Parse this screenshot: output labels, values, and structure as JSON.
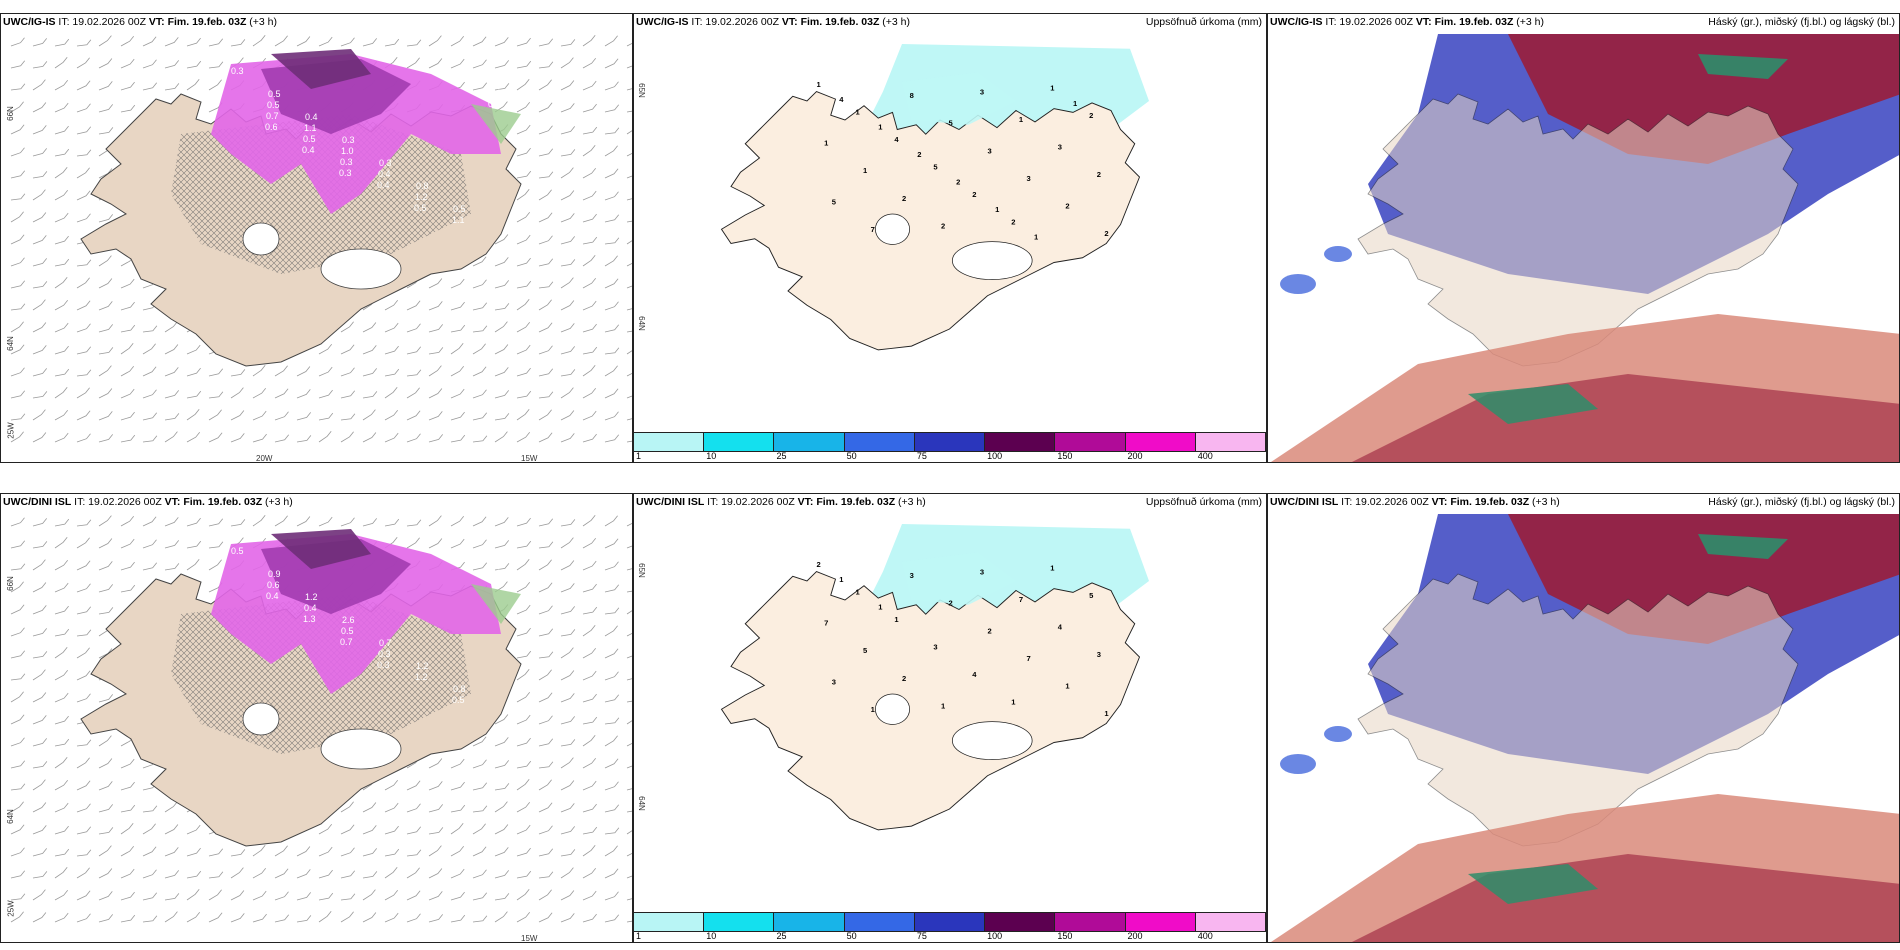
{
  "rows": [
    {
      "wind": {
        "model": "UWC/IG-IS",
        "it": "IT: 19.02.2026 00Z",
        "vt_label": "VT:",
        "vt": "Fim. 19.feb. 03Z",
        "lead": "(+3 h)"
      },
      "precip": {
        "model": "UWC/IG-IS",
        "it": "IT: 19.02.2026 00Z",
        "vt_label": "VT:",
        "vt": "Fim. 19.feb. 03Z",
        "lead": "(+3 h)",
        "right": "Uppsöfnuð úrkoma (mm)"
      },
      "cloud": {
        "model": "UWC/IG-IS",
        "it": "IT: 19.02.2026 00Z",
        "vt_label": "VT:",
        "vt": "Fim. 19.feb. 03Z",
        "lead": "(+3 h)",
        "right": "Háský (gr.), miðský (fj.bl.) og lágský (bl.)"
      }
    },
    {
      "wind": {
        "model": "UWC/DINI ISL",
        "it": "IT: 19.02.2026 00Z",
        "vt_label": "VT:",
        "vt": "Fim. 19.feb. 03Z",
        "lead": "(+3 h)"
      },
      "precip": {
        "model": "UWC/DINI ISL",
        "it": "IT: 19.02.2026 00Z",
        "vt_label": "VT:",
        "vt": "Fim. 19.feb. 03Z",
        "lead": "(+3 h)",
        "right": "Uppsöfnuð úrkoma (mm)"
      },
      "cloud": {
        "model": "UWC/DINI ISL",
        "it": "IT: 19.02.2026 00Z",
        "vt_label": "VT:",
        "vt": "Fim. 19.feb. 03Z",
        "lead": "(+3 h)",
        "right": "Háský (gr.), miðský (fj.bl.) og lágský (bl.)"
      }
    }
  ],
  "axis": {
    "lat66": "66N",
    "lat64": "64N",
    "lon25": "25W",
    "lon20": "20W",
    "lon15": "15W",
    "lat65": "65N",
    "lat64b": "64N"
  },
  "legend": {
    "labels": [
      "1",
      "10",
      "25",
      "50",
      "75",
      "100",
      "150",
      "200",
      "400"
    ],
    "colors": [
      "#b8f5f5",
      "#14e0ee",
      "#18b4e8",
      "#3468e6",
      "#2a36bc",
      "#5c0050",
      "#b00b98",
      "#f00cc8",
      "#f8b6f0"
    ]
  },
  "precip_labels_top": [
    "1",
    "1",
    "4",
    "5",
    "2",
    "2",
    "1",
    "2",
    "1",
    "1",
    "2",
    "2",
    "3",
    "1",
    "3",
    "2",
    "5",
    "7",
    "8",
    "5",
    "3",
    "3",
    "2",
    "2",
    "4",
    "1",
    "2",
    "2",
    "1",
    "1",
    "1"
  ],
  "precip_labels_bot": [
    "2",
    "1",
    "1",
    "3",
    "4",
    "1",
    "1",
    "5",
    "7",
    "5",
    "2",
    "1",
    "3",
    "7",
    "4",
    "3",
    "3",
    "1",
    "3",
    "2",
    "2",
    "7",
    "1",
    "1",
    "1",
    "1"
  ],
  "wind_labels_top": [
    "0.3",
    "0.5",
    "0.4",
    "0.3",
    "0.3",
    "0.8",
    "0.5",
    "0.8",
    "0.5",
    "1.1",
    "1.0",
    "0.4",
    "1.2",
    "1.1",
    "1.0",
    "0.7",
    "0.5",
    "0.3",
    "0.4",
    "0.5",
    "0.8",
    "0.5",
    "0.6",
    "0.4",
    "0.3"
  ],
  "wind_labels_bot": [
    "0.5",
    "0.9",
    "1.2",
    "2.6",
    "0.7",
    "1.2",
    "0.8",
    "1.5",
    "0.6",
    "0.4",
    "0.5",
    "0.3",
    "1.2",
    "0.5",
    "0.9",
    "0.4",
    "1.3",
    "0.7",
    "0.3"
  ],
  "colors": {
    "land": "#e8d6c4",
    "precip_land": "#fbeee0",
    "purple_dark": "#6e2e78",
    "purple_mid": "#a23cb0",
    "magenta": "#e266e8",
    "green": "#9ccc8e",
    "cyan_precip": "#bff7f6",
    "cloud_blue": "#4c55c6",
    "cloud_red": "#9a1e3a",
    "cloud_green": "#2e8d6a",
    "cloud_salmon": "#d9897a"
  }
}
